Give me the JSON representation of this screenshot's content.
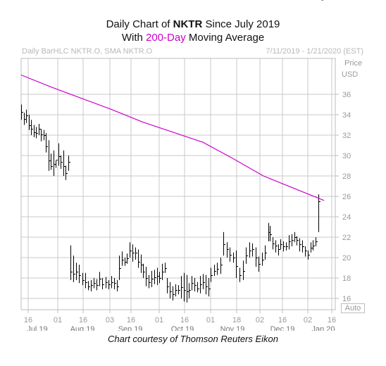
{
  "header": {
    "title_line1_pre": "Daily Chart of ",
    "title_line1_ticker": "NKTR",
    "title_line1_post": " Since July 2019",
    "title_line2_pre": "With ",
    "title_line2_hl": "200-Day",
    "title_line2_post": " Moving Average",
    "meta_left": "Daily BarHLC NKTR.O, SMA NKTR.O",
    "meta_right": "7/11/2019 - 1/21/2020 (EST)",
    "price_label": "Price",
    "currency_label": "USD",
    "auto_label": "Auto"
  },
  "caption": "Chart courtesy of Thomson Reuters Eikon",
  "colors": {
    "sma": "#cc00cc",
    "bars": "#000000",
    "grid": "#c8c8c8",
    "axis_text": "#9a9a9a"
  },
  "chart_data": {
    "type": "bar",
    "title": "Daily Chart of NKTR Since July 2019",
    "subtitle": "With 200-Day Moving Average",
    "ylim": [
      15,
      39
    ],
    "y_ticks": [
      16,
      18,
      20,
      22,
      24,
      26,
      28,
      30,
      32,
      34,
      36
    ],
    "x_tick_labels": [
      "16",
      "01",
      "16",
      "03",
      "16",
      "01",
      "16",
      "01",
      "18",
      "02",
      "16",
      "02",
      "16"
    ],
    "month_labels": [
      "Jul 19",
      "Aug 19",
      "Sep 19",
      "Oct 19",
      "Nov 19",
      "Dec 19",
      "Jan 20"
    ],
    "grid": true,
    "series": [
      {
        "name": "Daily BarHLC NKTR.O",
        "kind": "hlc_bars",
        "high": [
          35.0,
          34.2,
          34.5,
          34.0,
          33.5,
          33.0,
          32.8,
          33.1,
          32.6,
          32.5,
          32.2,
          31.5,
          30.2,
          30.5,
          29.5,
          31.2,
          30.0,
          30.5,
          29.0,
          30.0,
          21.2,
          20.2,
          19.5,
          19.3,
          18.5,
          18.5,
          17.7,
          17.8,
          18.0,
          17.9,
          18.6,
          18.0,
          18.1,
          17.8,
          18.2,
          18.0,
          17.8,
          20.2,
          20.6,
          20.0,
          20.4,
          21.5,
          21.3,
          21.0,
          20.8,
          20.3,
          19.4,
          19.1,
          18.3,
          18.7,
          18.8,
          19.0,
          18.6,
          19.4,
          19.5,
          18.0,
          17.6,
          17.2,
          17.4,
          17.3,
          18.2,
          18.5,
          18.3,
          17.5,
          18.2,
          18.0,
          17.6,
          18.2,
          18.4,
          18.3,
          18.0,
          19.0,
          19.3,
          19.5,
          20.0,
          22.5,
          21.5,
          21.0,
          20.5,
          20.7,
          19.0,
          19.7,
          21.0,
          21.5,
          21.4,
          21.0,
          20.1,
          20.5,
          21.2,
          23.4,
          23.1,
          22.0,
          21.7,
          21.3,
          21.8,
          21.6,
          21.5,
          22.2,
          22.3,
          22.5,
          22.1,
          21.9,
          21.7,
          21.1,
          20.7,
          21.5,
          21.7,
          22.0,
          26.2
        ],
        "low": [
          33.5,
          33.0,
          33.2,
          32.5,
          32.0,
          31.8,
          31.7,
          32.0,
          31.4,
          31.5,
          30.3,
          28.5,
          28.6,
          28.0,
          28.8,
          29.0,
          28.7,
          28.0,
          27.6,
          28.5,
          17.8,
          17.6,
          17.8,
          17.5,
          17.3,
          17.0,
          16.8,
          16.7,
          17.0,
          16.8,
          17.2,
          16.9,
          17.0,
          16.9,
          17.0,
          16.9,
          16.7,
          17.8,
          19.2,
          19.2,
          19.4,
          20.0,
          19.6,
          19.8,
          19.0,
          18.5,
          18.0,
          17.2,
          17.0,
          17.1,
          17.4,
          17.3,
          17.5,
          17.8,
          18.5,
          16.5,
          16.0,
          15.8,
          16.2,
          16.4,
          16.0,
          15.7,
          15.6,
          16.0,
          16.8,
          16.7,
          16.6,
          16.5,
          16.9,
          16.4,
          16.2,
          17.6,
          18.2,
          18.3,
          18.4,
          20.2,
          20.0,
          19.6,
          19.5,
          18.0,
          17.6,
          17.8,
          19.4,
          20.0,
          20.1,
          19.1,
          18.6,
          19.2,
          19.8,
          21.6,
          21.6,
          20.8,
          20.5,
          20.2,
          20.8,
          20.6,
          20.7,
          20.8,
          21.1,
          21.5,
          21.2,
          20.6,
          20.5,
          20.1,
          19.8,
          20.5,
          20.7,
          21.1,
          22.5
        ],
        "close": [
          34.3,
          33.6,
          33.9,
          33.0,
          32.6,
          32.3,
          32.2,
          32.6,
          32.1,
          32.0,
          30.9,
          29.5,
          29.0,
          29.2,
          29.6,
          29.9,
          29.4,
          29.0,
          28.3,
          29.4,
          18.6,
          18.4,
          18.6,
          18.3,
          17.8,
          17.6,
          17.2,
          17.3,
          17.5,
          17.3,
          17.9,
          17.4,
          17.6,
          17.4,
          17.6,
          17.5,
          17.2,
          19.0,
          19.8,
          19.6,
          19.9,
          20.7,
          20.5,
          20.5,
          19.6,
          19.3,
          18.6,
          18.0,
          17.6,
          17.9,
          18.1,
          18.2,
          18.0,
          18.6,
          19.0,
          17.2,
          16.7,
          16.4,
          16.8,
          16.8,
          17.1,
          16.8,
          16.7,
          16.8,
          17.5,
          17.3,
          17.0,
          17.4,
          17.6,
          17.2,
          17.0,
          18.3,
          18.7,
          18.9,
          19.3,
          21.3,
          20.8,
          20.3,
          20.0,
          19.2,
          18.3,
          18.7,
          20.2,
          20.7,
          20.8,
          20.0,
          19.4,
          19.8,
          20.5,
          22.5,
          22.3,
          21.4,
          21.2,
          20.8,
          21.3,
          21.1,
          21.1,
          21.6,
          21.7,
          22.0,
          21.7,
          21.3,
          21.1,
          20.7,
          20.3,
          21.0,
          21.2,
          21.6,
          25.5
        ]
      },
      {
        "name": "SMA NKTR.O",
        "kind": "line",
        "values": [
          37.9,
          36.7,
          35.6,
          34.5,
          33.3,
          32.3,
          31.3,
          29.7,
          28.0,
          26.8,
          25.6
        ]
      }
    ]
  }
}
